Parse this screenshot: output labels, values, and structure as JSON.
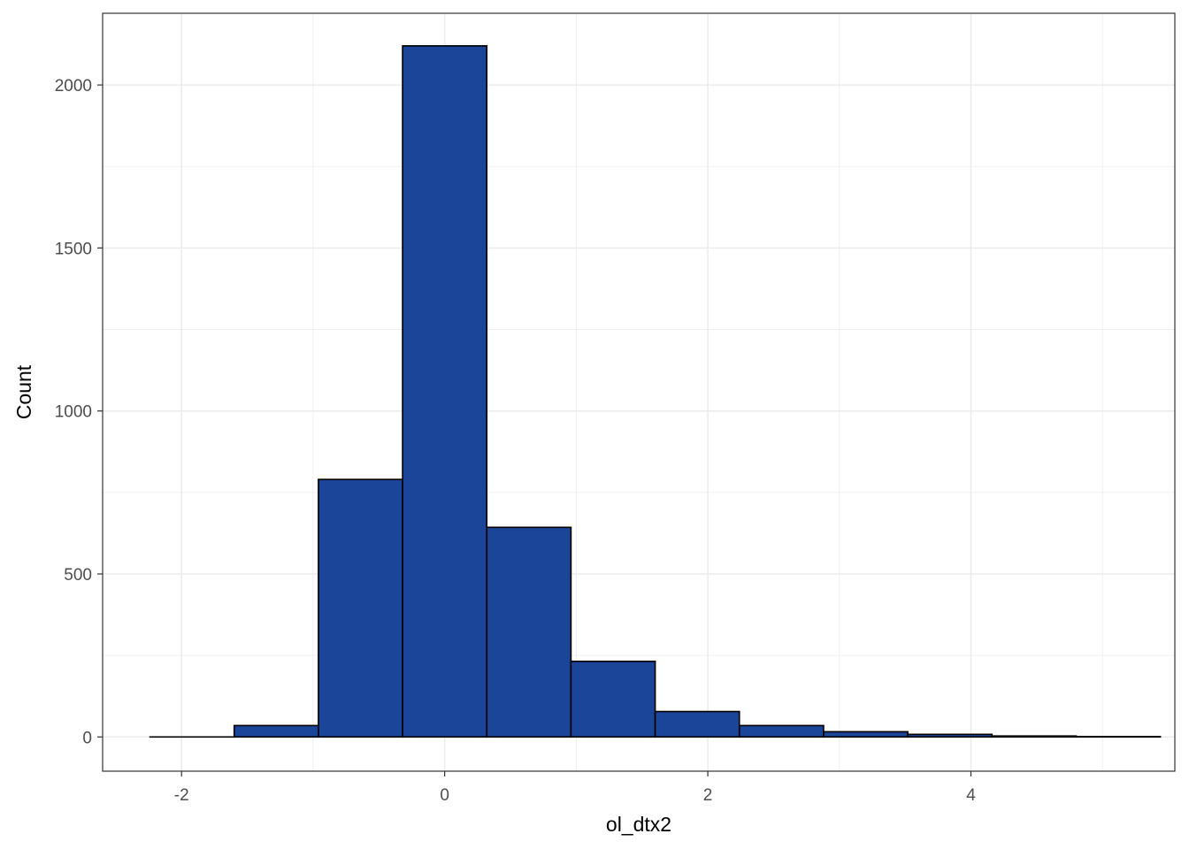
{
  "chart_data": {
    "type": "bar",
    "subtype": "histogram",
    "xlabel": "ol_dtx2",
    "ylabel": "Count",
    "xlim": [
      -2.6,
      5.55
    ],
    "ylim": [
      -105,
      2220
    ],
    "x_ticks": [
      -2,
      0,
      2,
      4
    ],
    "x_tick_labels": [
      "-2",
      "0",
      "2",
      "4"
    ],
    "y_ticks": [
      0,
      500,
      1000,
      1500,
      2000
    ],
    "y_tick_labels": [
      "0",
      "500",
      "1000",
      "1500",
      "2000"
    ],
    "grid": true,
    "bins": [
      {
        "x0": -2.24,
        "x1": -1.6,
        "count": 0
      },
      {
        "x0": -1.6,
        "x1": -0.96,
        "count": 35
      },
      {
        "x0": -0.96,
        "x1": -0.32,
        "count": 790
      },
      {
        "x0": -0.32,
        "x1": 0.32,
        "count": 2120
      },
      {
        "x0": 0.32,
        "x1": 0.96,
        "count": 643
      },
      {
        "x0": 0.96,
        "x1": 1.6,
        "count": 232
      },
      {
        "x0": 1.6,
        "x1": 2.24,
        "count": 78
      },
      {
        "x0": 2.24,
        "x1": 2.88,
        "count": 35
      },
      {
        "x0": 2.88,
        "x1": 3.52,
        "count": 16
      },
      {
        "x0": 3.52,
        "x1": 4.16,
        "count": 8
      },
      {
        "x0": 4.16,
        "x1": 4.8,
        "count": 3
      },
      {
        "x0": 4.8,
        "x1": 5.44,
        "count": 1
      }
    ],
    "colors": {
      "fill": "#1a4598",
      "stroke": "#000000",
      "grid": "#ebebeb",
      "panel_border": "#333333",
      "tick_text": "#4d4d4d"
    }
  }
}
